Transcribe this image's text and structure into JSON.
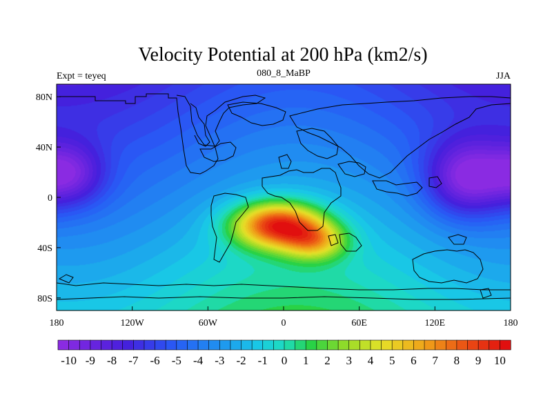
{
  "chart_data": {
    "type": "heatmap",
    "title": "Velocity Potential at 200 hPa (km2/s)",
    "subtitle_left": "Expt = teyeq",
    "subtitle_center": "080_8_MaBP",
    "subtitle_right": "JJA",
    "x_ticks": [
      {
        "value": -180,
        "label": "180"
      },
      {
        "value": -120,
        "label": "120W"
      },
      {
        "value": -60,
        "label": "60W"
      },
      {
        "value": 0,
        "label": "0"
      },
      {
        "value": 60,
        "label": "60E"
      },
      {
        "value": 120,
        "label": "120E"
      },
      {
        "value": 180,
        "label": "180"
      }
    ],
    "y_ticks": [
      {
        "value": 80,
        "label": "80N"
      },
      {
        "value": 40,
        "label": "40N"
      },
      {
        "value": 0,
        "label": "0"
      },
      {
        "value": -40,
        "label": "40S"
      },
      {
        "value": -80,
        "label": "80S"
      }
    ],
    "xlim": [
      -180,
      180
    ],
    "ylim": [
      -90,
      90
    ],
    "colorbar": {
      "min": -10.5,
      "max": 10.5,
      "step": 0.5,
      "labels": [
        "-10",
        "-9",
        "-8",
        "-7",
        "-6",
        "-5",
        "-4",
        "-3",
        "-2",
        "-1",
        "0",
        "1",
        "2",
        "3",
        "4",
        "5",
        "6",
        "7",
        "8",
        "9",
        "10"
      ],
      "label_values": [
        -10,
        -9,
        -8,
        -7,
        -6,
        -5,
        -4,
        -3,
        -2,
        -1,
        0,
        1,
        2,
        3,
        4,
        5,
        6,
        7,
        8,
        9,
        10
      ]
    },
    "field_centers": [
      {
        "lon": -5,
        "lat": -22,
        "value": 10.5,
        "lon_radius": 35,
        "lat_radius": 18
      },
      {
        "lon": 25,
        "lat": -35,
        "value": 4.0,
        "lon_radius": 25,
        "lat_radius": 15
      },
      {
        "lon": 145,
        "lat": 15,
        "value": -10.5,
        "lon_radius": 32,
        "lat_radius": 30
      },
      {
        "lon": -170,
        "lat": 18,
        "value": -9.0,
        "lon_radius": 28,
        "lat_radius": 25
      },
      {
        "lon": -135,
        "lat": 30,
        "value": -3.0,
        "lon_radius": 30,
        "lat_radius": 20
      }
    ]
  }
}
